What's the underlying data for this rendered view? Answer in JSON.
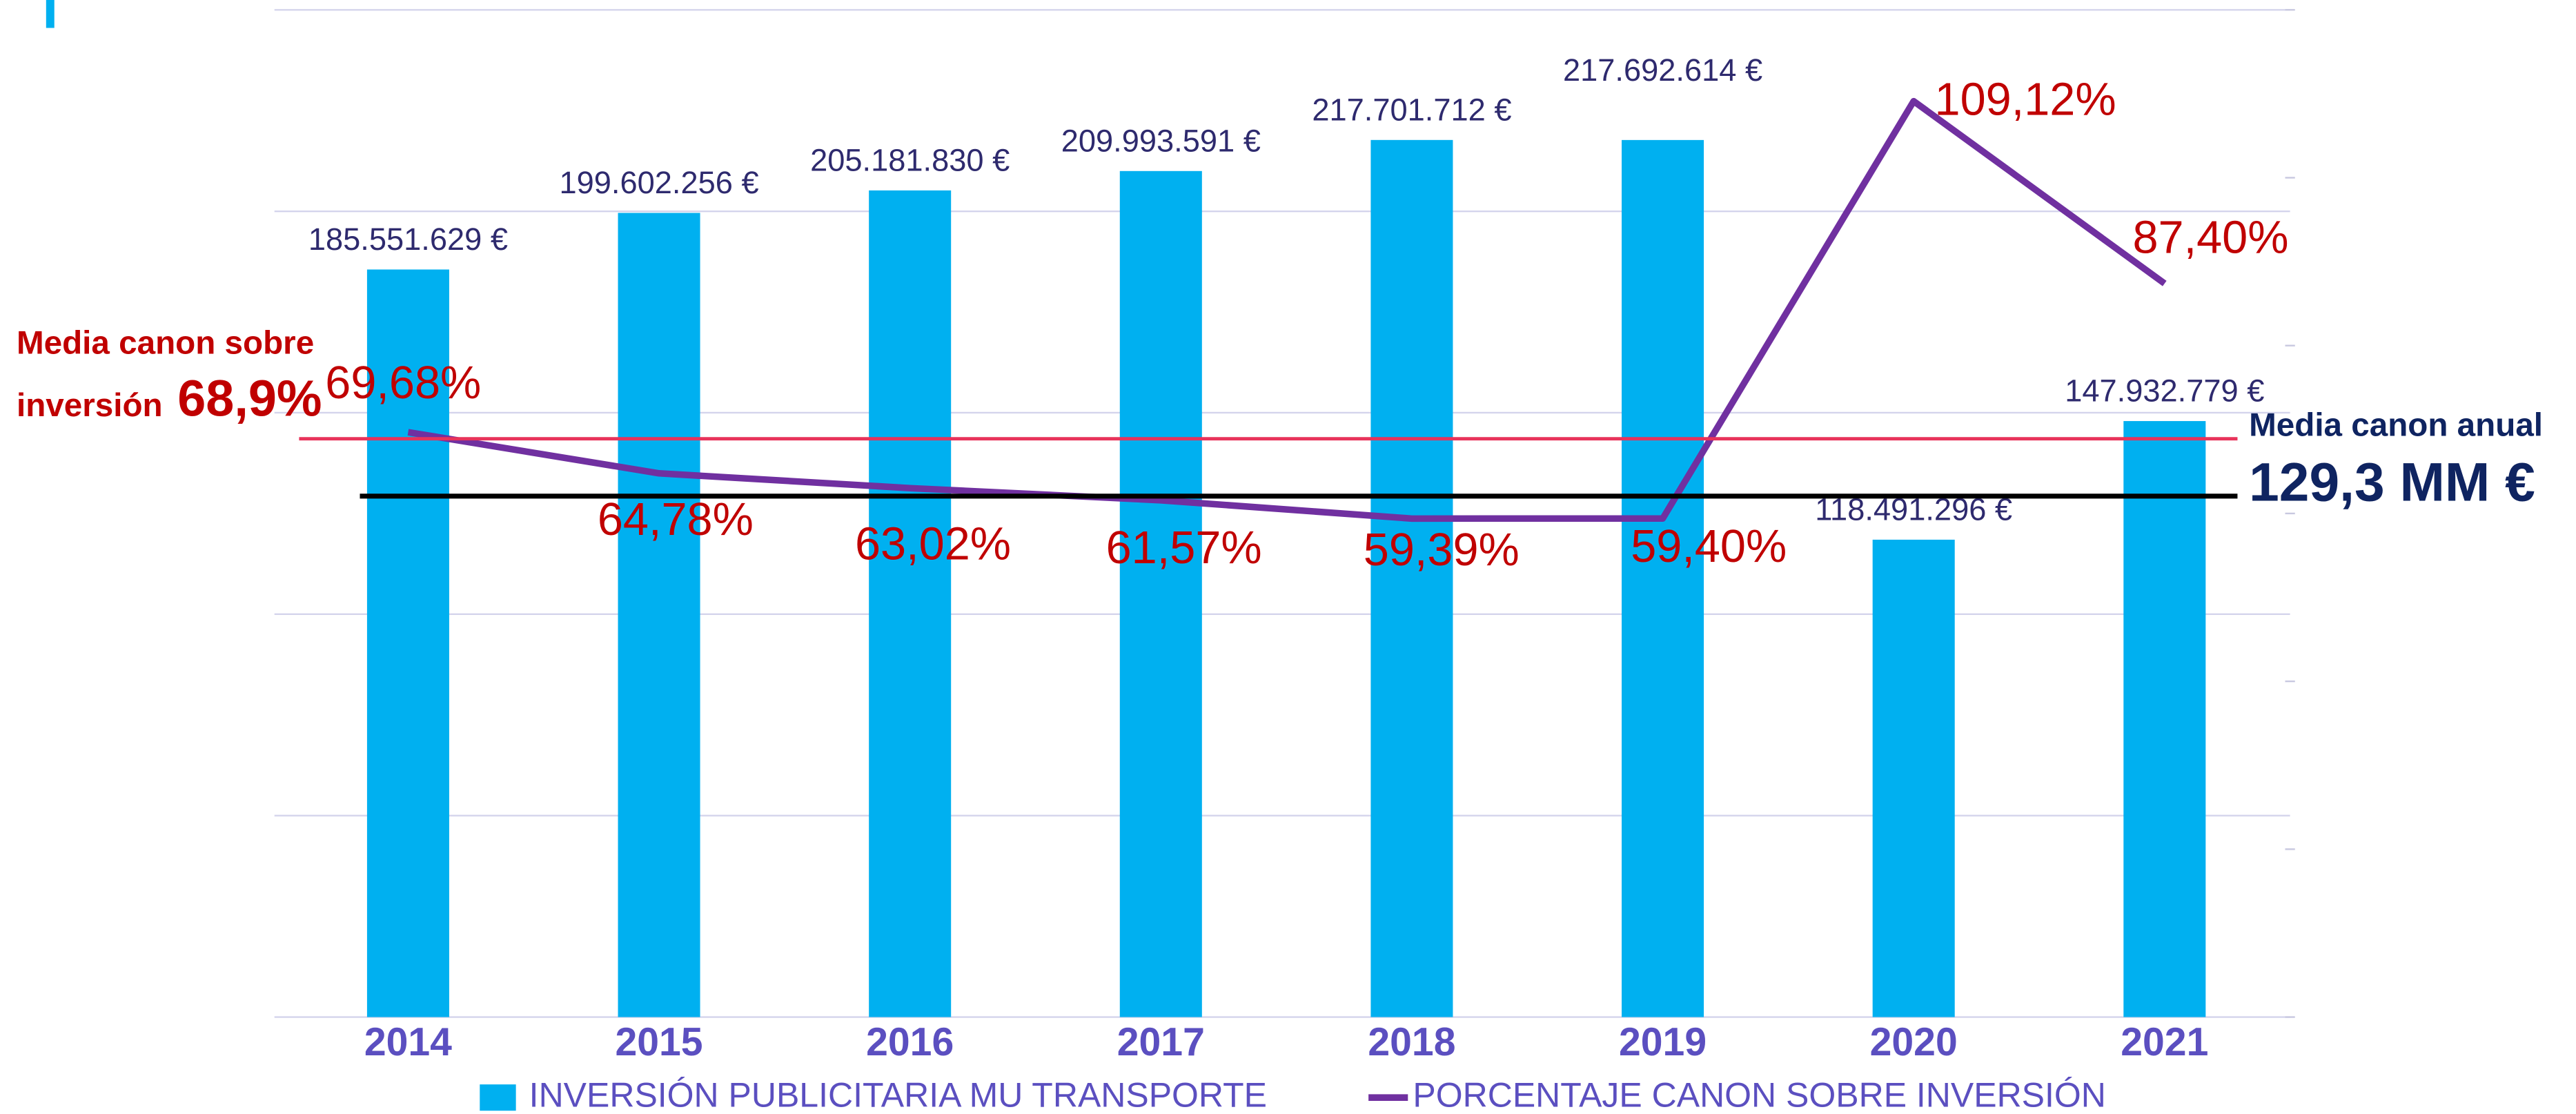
{
  "chart_data": {
    "type": "bar",
    "categories": [
      "2014",
      "2015",
      "2016",
      "2017",
      "2018",
      "2019",
      "2020",
      "2021"
    ],
    "series": [
      {
        "name": "INVERSIÓN PUBLICITARIA MU TRANSPORTE",
        "type": "bar",
        "color": "#00b0f0",
        "values": [
          185551629,
          199602256,
          205181830,
          209993591,
          217701712,
          217692614,
          118491296,
          147932779
        ],
        "value_labels": [
          "185.551.629 €",
          "199.602.256 €",
          "205.181.830 €",
          "209.993.591 €",
          "217.701.712 €",
          "217.692.614 €",
          "118.491.296 €",
          "147.932.779 €"
        ]
      },
      {
        "name": "PORCENTAJE CANON SOBRE INVERSIÓN",
        "type": "line",
        "axis": "y2",
        "color": "#7030a0",
        "values": [
          69.68,
          64.78,
          63.02,
          61.57,
          59.39,
          59.4,
          109.12,
          87.4
        ],
        "value_labels": [
          "69,68%",
          "64,78%",
          "63,02%",
          "61,57%",
          "59,39%",
          "59,40%",
          "109,12%",
          "87,40%"
        ]
      }
    ],
    "ylim": [
      0,
      250000000
    ],
    "yticks": [
      0,
      50000000,
      100000000,
      150000000,
      200000000,
      250000000
    ],
    "y2lim": [
      0,
      120
    ],
    "y2ticks": [
      0,
      20,
      40,
      60,
      80,
      100,
      120
    ],
    "grid": true,
    "reference_lines": [
      {
        "axis": "y2",
        "value": 68.9,
        "label": "68,9%",
        "text": [
          "Media canon sobre",
          "inversión"
        ],
        "color": "#e8335a"
      },
      {
        "axis": "y",
        "value": 129300000,
        "label": "129,3 MM €",
        "text": [
          "Media canon anual"
        ],
        "color": "#000000"
      }
    ]
  }
}
